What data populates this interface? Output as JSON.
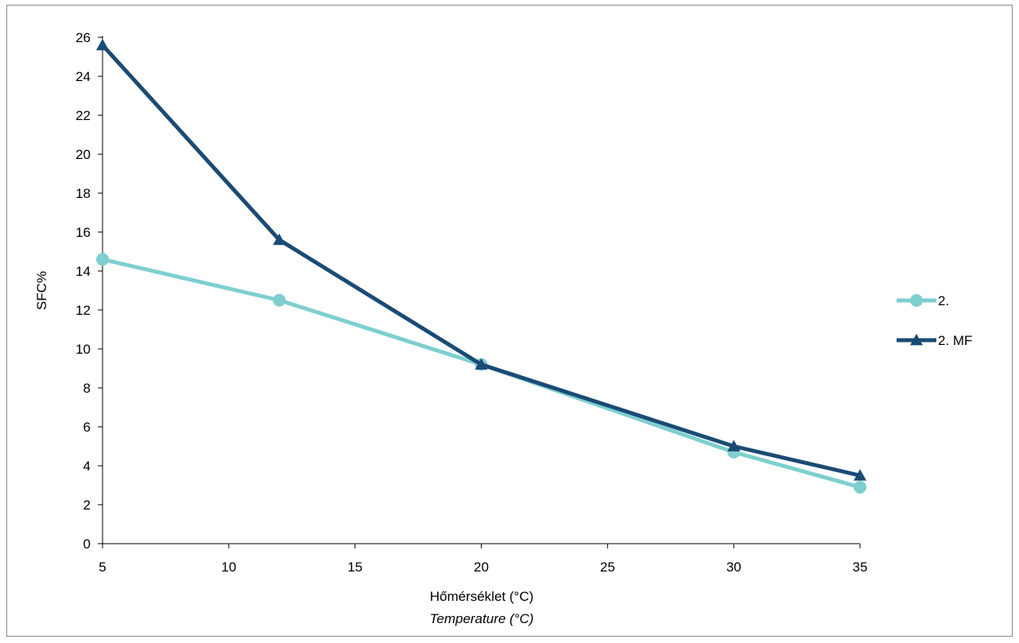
{
  "chart_data": {
    "type": "line",
    "xlabel": "Hőmérséklet (°C)",
    "xlabel_secondary": "Temperature (°C)",
    "ylabel": "SFC%",
    "xlim": [
      5,
      35
    ],
    "ylim": [
      0,
      26
    ],
    "x_ticks": [
      5,
      10,
      15,
      20,
      25,
      30,
      35
    ],
    "y_ticks": [
      0,
      2,
      4,
      6,
      8,
      10,
      12,
      14,
      16,
      18,
      20,
      22,
      24,
      26
    ],
    "grid": false,
    "legend_position": "right",
    "series": [
      {
        "name": "2.",
        "marker": "circle",
        "color": "#7ecfcf",
        "x": [
          5,
          12,
          20,
          30,
          35
        ],
        "y": [
          14.6,
          12.5,
          9.2,
          4.7,
          2.9
        ]
      },
      {
        "name": "2. MF",
        "marker": "triangle",
        "color": "#1a4b75",
        "x": [
          5,
          12,
          20,
          30,
          35
        ],
        "y": [
          25.6,
          15.6,
          9.2,
          5.0,
          3.5
        ]
      }
    ]
  }
}
